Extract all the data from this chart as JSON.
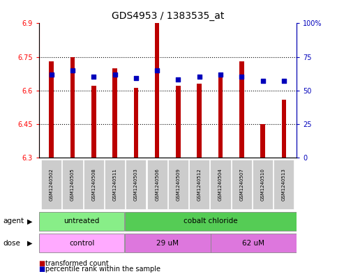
{
  "title": "GDS4953 / 1383535_at",
  "samples": [
    "GSM1240502",
    "GSM1240505",
    "GSM1240508",
    "GSM1240511",
    "GSM1240503",
    "GSM1240506",
    "GSM1240509",
    "GSM1240512",
    "GSM1240504",
    "GSM1240507",
    "GSM1240510",
    "GSM1240513"
  ],
  "bar_values": [
    6.73,
    6.75,
    6.62,
    6.7,
    6.61,
    6.9,
    6.62,
    6.63,
    6.66,
    6.73,
    6.45,
    6.56
  ],
  "percentile_values": [
    62,
    65,
    60,
    62,
    59,
    65,
    58,
    60,
    62,
    60,
    57,
    57
  ],
  "bar_bottom": 6.3,
  "ylim": [
    6.3,
    6.9
  ],
  "y_ticks": [
    6.3,
    6.45,
    6.6,
    6.75,
    6.9
  ],
  "y_tick_labels": [
    "6.3",
    "6.45",
    "6.6",
    "6.75",
    "6.9"
  ],
  "right_y_ticks": [
    0,
    25,
    50,
    75,
    100
  ],
  "right_y_labels": [
    "0",
    "25",
    "50",
    "75",
    "100%"
  ],
  "bar_color": "#bb0000",
  "percentile_color": "#0000bb",
  "agent_groups": [
    {
      "label": "untreated",
      "start": 0,
      "end": 4,
      "color": "#88ee88"
    },
    {
      "label": "cobalt chloride",
      "start": 4,
      "end": 12,
      "color": "#55cc55"
    }
  ],
  "dose_groups": [
    {
      "label": "control",
      "start": 0,
      "end": 4,
      "color": "#ffaaff"
    },
    {
      "label": "29 uM",
      "start": 4,
      "end": 8,
      "color": "#dd77dd"
    },
    {
      "label": "62 uM",
      "start": 8,
      "end": 12,
      "color": "#dd77dd"
    }
  ],
  "title_fontsize": 10,
  "tick_fontsize": 7,
  "sample_fontsize": 5,
  "label_fontsize": 7.5,
  "legend_fontsize": 7
}
